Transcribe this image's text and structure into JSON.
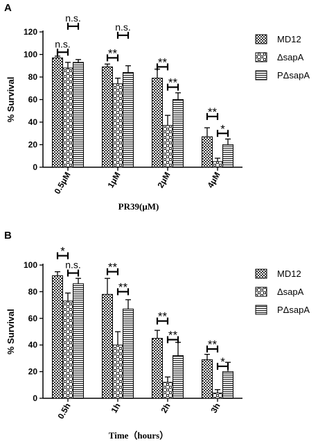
{
  "figure": {
    "panels": [
      {
        "letter": "A",
        "chart_data": {
          "type": "bar",
          "xlabel": "PR39(μM)",
          "ylabel": "% Survival",
          "ylim": [
            0,
            120
          ],
          "yticks": [
            0,
            20,
            40,
            60,
            80,
            100,
            120
          ],
          "categories": [
            "0.5μM",
            "1μM",
            "2μM",
            "4μM"
          ],
          "series": [
            {
              "name": "MD12",
              "pattern": "checker",
              "values": [
                97,
                89,
                79,
                27
              ],
              "errors": [
                1.5,
                2.5,
                8,
                8
              ]
            },
            {
              "name": "ΔsapA",
              "pattern": "dots",
              "values": [
                88,
                74,
                37,
                5
              ],
              "errors": [
                5,
                5,
                9,
                3
              ]
            },
            {
              "name": "PΔsapA",
              "pattern": "hstripes",
              "values": [
                93,
                84,
                60,
                20
              ],
              "errors": [
                2.5,
                6,
                6,
                5
              ]
            }
          ],
          "legend": "right",
          "significance": [
            {
              "category": 0,
              "from": 0,
              "to": 1,
              "label": "n.s.",
              "y": 102
            },
            {
              "category": 0,
              "from": 1,
              "to": 2,
              "label": "n.s.",
              "y": 125
            },
            {
              "category": 1,
              "from": 0,
              "to": 1,
              "label": "**",
              "y": 97
            },
            {
              "category": 1,
              "from": 1,
              "to": 2,
              "label": "n.s.",
              "y": 117
            },
            {
              "category": 2,
              "from": 0,
              "to": 1,
              "label": "**",
              "y": 89
            },
            {
              "category": 2,
              "from": 1,
              "to": 2,
              "label": "**",
              "y": 71
            },
            {
              "category": 3,
              "from": 0,
              "to": 1,
              "label": "**",
              "y": 45
            },
            {
              "category": 3,
              "from": 1,
              "to": 2,
              "label": "*",
              "y": 30
            }
          ]
        }
      },
      {
        "letter": "B",
        "chart_data": {
          "type": "bar",
          "xlabel": "Time（hours）",
          "ylabel": "% Survival",
          "ylim": [
            0,
            100
          ],
          "yticks": [
            0,
            20,
            40,
            60,
            80,
            100
          ],
          "categories": [
            "0.5h",
            "1h",
            "2h",
            "3h"
          ],
          "series": [
            {
              "name": "MD12",
              "pattern": "checker",
              "values": [
                92,
                78,
                45,
                29
              ],
              "errors": [
                3,
                12,
                6,
                4
              ]
            },
            {
              "name": "ΔsapA",
              "pattern": "dots",
              "values": [
                73,
                40,
                12,
                4
              ],
              "errors": [
                6,
                10,
                4,
                2.5
              ]
            },
            {
              "name": "PΔsapA",
              "pattern": "hstripes",
              "values": [
                86,
                67,
                32,
                20
              ],
              "errors": [
                4,
                7,
                10,
                7
              ]
            }
          ],
          "legend": "right",
          "significance": [
            {
              "category": 0,
              "from": 0,
              "to": 1,
              "label": "*",
              "y": 107
            },
            {
              "category": 0,
              "from": 1,
              "to": 2,
              "label": "n.s.",
              "y": 94
            },
            {
              "category": 1,
              "from": 0,
              "to": 1,
              "label": "**",
              "y": 95
            },
            {
              "category": 1,
              "from": 1,
              "to": 2,
              "label": "**",
              "y": 80
            },
            {
              "category": 2,
              "from": 0,
              "to": 1,
              "label": "**",
              "y": 58
            },
            {
              "category": 2,
              "from": 1,
              "to": 2,
              "label": "**",
              "y": 44
            },
            {
              "category": 3,
              "from": 0,
              "to": 1,
              "label": "**",
              "y": 37
            },
            {
              "category": 3,
              "from": 1,
              "to": 2,
              "label": "*",
              "y": 24
            }
          ]
        }
      }
    ]
  }
}
